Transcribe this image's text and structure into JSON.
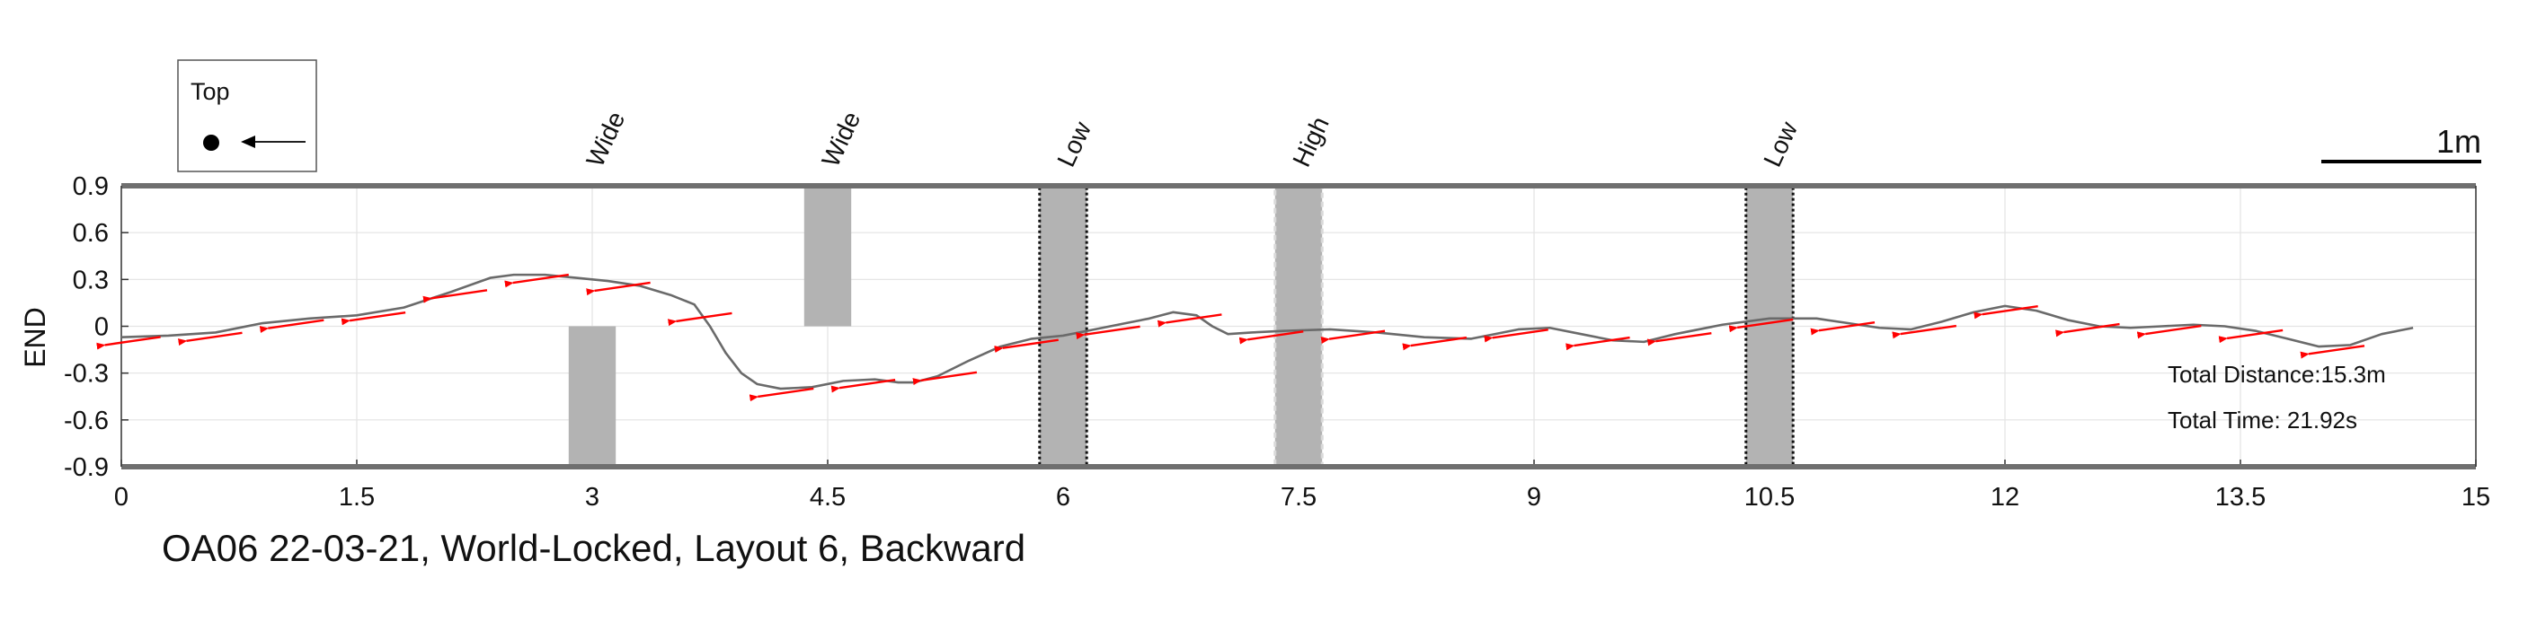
{
  "chart_data": {
    "type": "line",
    "title": "OA06 22-03-21, World-Locked, Layout 6, Backward",
    "xlabel": "",
    "ylabel": "END",
    "xlim": [
      0,
      15
    ],
    "ylim": [
      -0.9,
      0.9
    ],
    "x_ticks": [
      "0",
      "1.5",
      "3",
      "4.5",
      "6",
      "7.5",
      "9",
      "10.5",
      "12",
      "13.5",
      "15"
    ],
    "y_ticks": [
      "0.9",
      "0.6",
      "0.3",
      "0",
      "-0.3",
      "-0.6",
      "-0.9"
    ],
    "grid": true,
    "legend": {
      "label": "Top",
      "position": "top-left"
    },
    "scale_bar_label": "1m",
    "annotations": [
      "Total Distance:15.3m",
      "Total Time: 21.92s"
    ],
    "obstacles": [
      {
        "label": "Wide",
        "x0": 2.85,
        "x1": 3.15,
        "y0": -0.9,
        "y1": 0,
        "border": "none"
      },
      {
        "label": "Wide",
        "x0": 4.35,
        "x1": 4.65,
        "y0": 0,
        "y1": 0.9,
        "border": "none"
      },
      {
        "label": "Low",
        "x0": 5.85,
        "x1": 6.15,
        "y0": -0.9,
        "y1": 0.9,
        "border": "dotted-dark"
      },
      {
        "label": "High",
        "x0": 7.35,
        "x1": 7.65,
        "y0": -0.9,
        "y1": 0.9,
        "border": "dashed-light"
      },
      {
        "label": "Low",
        "x0": 10.35,
        "x1": 10.65,
        "y0": -0.9,
        "y1": 0.9,
        "border": "dotted-dark"
      }
    ],
    "series": [
      {
        "x": [
          0,
          0.3,
          0.6,
          0.9,
          1.2,
          1.5,
          1.8,
          2.1,
          2.35,
          2.5,
          2.7,
          2.9,
          3.1,
          3.3,
          3.5,
          3.65,
          3.75,
          3.85,
          3.95,
          4.05,
          4.2,
          4.4,
          4.6,
          4.8,
          4.95,
          5.05,
          5.2,
          5.4,
          5.6,
          5.8,
          6.0,
          6.2,
          6.4,
          6.55,
          6.7,
          6.85,
          6.95,
          7.05,
          7.2,
          7.4,
          7.7,
          8.0,
          8.3,
          8.6,
          8.9,
          9.1,
          9.3,
          9.5,
          9.7,
          9.9,
          10.2,
          10.5,
          10.8,
          11.0,
          11.2,
          11.4,
          11.6,
          11.8,
          12.0,
          12.2,
          12.4,
          12.6,
          12.8,
          13.0,
          13.2,
          13.4,
          13.6,
          13.8,
          14.0,
          14.2,
          14.4,
          14.6
        ],
        "y": [
          -0.07,
          -0.06,
          -0.04,
          0.02,
          0.05,
          0.07,
          0.12,
          0.22,
          0.31,
          0.33,
          0.33,
          0.31,
          0.29,
          0.26,
          0.2,
          0.14,
          0.0,
          -0.17,
          -0.3,
          -0.37,
          -0.4,
          -0.39,
          -0.35,
          -0.34,
          -0.36,
          -0.36,
          -0.32,
          -0.22,
          -0.13,
          -0.08,
          -0.06,
          -0.02,
          0.02,
          0.05,
          0.09,
          0.07,
          0.0,
          -0.05,
          -0.04,
          -0.03,
          -0.02,
          -0.04,
          -0.07,
          -0.08,
          -0.02,
          -0.01,
          -0.05,
          -0.09,
          -0.1,
          -0.05,
          0.01,
          0.05,
          0.05,
          0.02,
          -0.01,
          -0.02,
          0.03,
          0.09,
          0.13,
          0.1,
          0.04,
          0.0,
          -0.01,
          0.0,
          0.01,
          0.0,
          -0.03,
          -0.08,
          -0.13,
          -0.12,
          -0.05,
          -0.01
        ]
      }
    ]
  },
  "colors": {
    "trajectory": "#6a6a6a",
    "arrow": "#ff0000",
    "obstacle": "#b3b3b3",
    "frame": "#6f6f6f",
    "grid": "#e3e3e3"
  }
}
